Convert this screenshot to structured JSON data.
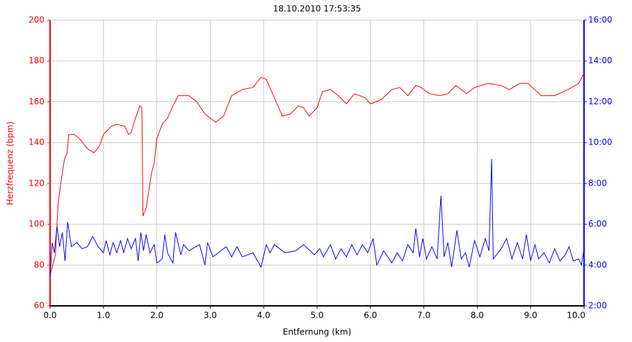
{
  "chart_data": {
    "type": "line",
    "title": "18.10.2010 17:53:35",
    "xlabel": "Entfernung (km)",
    "ylabel": "Herzfrequenz (bpm)",
    "xlim": [
      0,
      10
    ],
    "xticks": [
      {
        "value": 0,
        "label": "0.0"
      },
      {
        "value": 1,
        "label": "1.0"
      },
      {
        "value": 2,
        "label": "2.0"
      },
      {
        "value": 3,
        "label": "3.0"
      },
      {
        "value": 4,
        "label": "4.0"
      },
      {
        "value": 5,
        "label": "5.0"
      },
      {
        "value": 6,
        "label": "6.0"
      },
      {
        "value": 7,
        "label": "7.0"
      },
      {
        "value": 8,
        "label": "8.0"
      },
      {
        "value": 9,
        "label": "9.0"
      },
      {
        "value": 10,
        "label": "10.0"
      }
    ],
    "ylim": [
      60,
      200
    ],
    "yticks": [
      60,
      80,
      100,
      120,
      140,
      160,
      180,
      200
    ],
    "y2lim": [
      2,
      16
    ],
    "y2ticks": [
      {
        "value": 2,
        "label": "2:00"
      },
      {
        "value": 4,
        "label": "4:00"
      },
      {
        "value": 6,
        "label": "6:00"
      },
      {
        "value": 8,
        "label": "8:00"
      },
      {
        "value": 10,
        "label": "10:00"
      },
      {
        "value": 12,
        "label": "12:00"
      },
      {
        "value": 14,
        "label": "14:00"
      },
      {
        "value": 16,
        "label": "16:00"
      }
    ],
    "grid": true,
    "series": [
      {
        "color": "#ff0000",
        "axis": "y",
        "x": [
          0,
          0.1,
          0.15,
          0.2,
          0.27,
          0.32,
          0.35,
          0.45,
          0.55,
          0.7,
          0.82,
          0.92,
          1.0,
          1.15,
          1.25,
          1.4,
          1.47,
          1.52,
          1.6,
          1.68,
          1.72,
          1.74,
          1.8,
          1.9,
          1.95,
          2.0,
          2.1,
          2.2,
          2.3,
          2.4,
          2.6,
          2.75,
          2.9,
          3.1,
          3.25,
          3.4,
          3.6,
          3.8,
          3.95,
          4.05,
          4.2,
          4.35,
          4.5,
          4.65,
          4.75,
          4.85,
          5.0,
          5.1,
          5.25,
          5.4,
          5.55,
          5.7,
          5.9,
          6.0,
          6.2,
          6.4,
          6.55,
          6.7,
          6.85,
          6.95,
          7.1,
          7.3,
          7.45,
          7.6,
          7.8,
          7.95,
          8.2,
          8.45,
          8.6,
          8.8,
          8.95,
          9.2,
          9.45,
          9.7,
          9.9,
          10.0
        ],
        "values": [
          75,
          85,
          110,
          120,
          132,
          135,
          144,
          144,
          142,
          137,
          135,
          138,
          144,
          148,
          149,
          148,
          144,
          145,
          152,
          158,
          157,
          104,
          108,
          125,
          130,
          142,
          149,
          152,
          158,
          163,
          163,
          160,
          154,
          150,
          153,
          163,
          166,
          167,
          172,
          171,
          162,
          153,
          154,
          158,
          157,
          153,
          157,
          165,
          166,
          163,
          159,
          164,
          162,
          159,
          161,
          166,
          167,
          163,
          168,
          167,
          164,
          163,
          164,
          168,
          164,
          167,
          169,
          168,
          166,
          169,
          169,
          163,
          163,
          166,
          169,
          174
        ]
      },
      {
        "color": "#0000ff",
        "axis": "y2",
        "x": [
          0,
          0.04,
          0.08,
          0.13,
          0.18,
          0.23,
          0.28,
          0.33,
          0.4,
          0.5,
          0.6,
          0.7,
          0.8,
          0.9,
          1.0,
          1.05,
          1.12,
          1.18,
          1.25,
          1.32,
          1.38,
          1.45,
          1.52,
          1.6,
          1.65,
          1.7,
          1.75,
          1.8,
          1.87,
          1.95,
          2.0,
          2.1,
          2.15,
          2.2,
          2.3,
          2.35,
          2.45,
          2.5,
          2.6,
          2.8,
          2.9,
          2.95,
          3.05,
          3.3,
          3.4,
          3.5,
          3.6,
          3.8,
          3.95,
          4.05,
          4.12,
          4.2,
          4.4,
          4.6,
          4.75,
          4.95,
          5.05,
          5.12,
          5.25,
          5.35,
          5.45,
          5.55,
          5.65,
          5.75,
          5.85,
          5.95,
          6.05,
          6.12,
          6.25,
          6.4,
          6.5,
          6.6,
          6.7,
          6.8,
          6.85,
          6.92,
          6.98,
          7.05,
          7.15,
          7.25,
          7.32,
          7.38,
          7.45,
          7.52,
          7.62,
          7.7,
          7.78,
          7.85,
          7.95,
          8.05,
          8.15,
          8.22,
          8.27,
          8.3,
          8.45,
          8.55,
          8.65,
          8.75,
          8.85,
          8.92,
          9.0,
          9.08,
          9.15,
          9.25,
          9.35,
          9.45,
          9.55,
          9.65,
          9.72,
          9.8,
          9.9,
          9.95,
          10.0
        ],
        "values": [
          3.4,
          5.1,
          4.6,
          5.9,
          4.9,
          5.6,
          4.2,
          6.1,
          4.9,
          5.1,
          4.8,
          4.9,
          5.4,
          4.9,
          4.6,
          5.2,
          4.5,
          5.1,
          4.6,
          5.2,
          4.6,
          5.3,
          4.8,
          5.3,
          4.2,
          5.6,
          4.7,
          5.5,
          4.6,
          5.0,
          4.1,
          4.3,
          5.5,
          4.6,
          4.1,
          5.6,
          4.5,
          5.0,
          4.7,
          5.0,
          4.0,
          5.1,
          4.4,
          4.9,
          4.4,
          4.9,
          4.4,
          4.6,
          3.9,
          5.0,
          4.6,
          5.0,
          4.6,
          4.7,
          5.0,
          4.5,
          4.8,
          4.4,
          5.0,
          4.3,
          4.8,
          4.4,
          5.0,
          4.5,
          5.0,
          4.6,
          5.3,
          4.0,
          4.7,
          4.1,
          4.6,
          4.2,
          5.0,
          4.6,
          5.8,
          4.4,
          5.3,
          4.3,
          4.9,
          4.3,
          7.4,
          4.4,
          5.1,
          3.9,
          5.7,
          4.3,
          4.6,
          3.9,
          5.2,
          4.4,
          5.3,
          4.7,
          9.2,
          4.3,
          4.8,
          5.3,
          4.3,
          5.1,
          4.3,
          5.5,
          4.2,
          5.0,
          4.3,
          4.6,
          4.1,
          4.8,
          4.2,
          4.5,
          4.9,
          4.2,
          4.3,
          4.0,
          4.8
        ]
      }
    ]
  }
}
